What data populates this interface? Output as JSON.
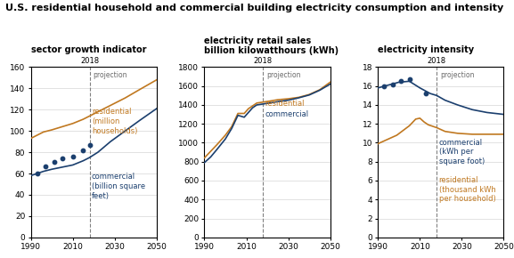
{
  "title": "U.S. residential household and commercial building electricity consumption and intensity",
  "chart_data": [
    {
      "type": "line",
      "title": "sector growth indicator",
      "xlim": [
        1990,
        2050
      ],
      "xticks": [
        1990,
        2010,
        2030,
        2050
      ],
      "ylim": [
        0,
        160
      ],
      "yticks": [
        0,
        20,
        40,
        60,
        80,
        100,
        120,
        140,
        160
      ],
      "grid": "y",
      "projection_line": {
        "x": 2018,
        "label": "2018",
        "text": "projection"
      },
      "series": [
        {
          "type": "line",
          "color": "#C07820",
          "x": [
            1990,
            1993,
            1996,
            2000,
            2005,
            2010,
            2015,
            2018,
            2022,
            2028,
            2035,
            2042,
            2050
          ],
          "values": [
            93,
            96,
            99,
            101,
            104,
            107,
            111,
            114,
            118,
            124,
            131,
            139,
            148
          ]
        },
        {
          "type": "line",
          "color": "#1B3F6E",
          "x": [
            1990,
            1993,
            1996,
            2000,
            2005,
            2010,
            2015,
            2018,
            2022,
            2028,
            2035,
            2042,
            2050
          ],
          "values": [
            58,
            60,
            62,
            64,
            66,
            68,
            72,
            75,
            80,
            90,
            100,
            110,
            121
          ]
        },
        {
          "type": "scatter",
          "color": "#1B3F6E",
          "x": [
            1993,
            1997,
            2001,
            2005,
            2010,
            2015,
            2018
          ],
          "values": [
            60,
            67,
            71,
            74,
            76,
            82,
            87
          ]
        }
      ],
      "annotations": [
        {
          "text": "residential",
          "x": 2019,
          "y": 116,
          "color": "#C07820"
        },
        {
          "text": "(million",
          "x": 2019,
          "y": 107,
          "color": "#C07820"
        },
        {
          "text": "households)",
          "x": 2019,
          "y": 98,
          "color": "#C07820"
        },
        {
          "text": "commercial",
          "x": 2019,
          "y": 55,
          "color": "#1B3F6E"
        },
        {
          "text": "(billion square",
          "x": 2019,
          "y": 46,
          "color": "#1B3F6E"
        },
        {
          "text": "feet)",
          "x": 2019,
          "y": 37,
          "color": "#1B3F6E"
        }
      ]
    },
    {
      "type": "line",
      "title": "electricity retail sales\nbillion kilowatthours (kWh)",
      "xlim": [
        1990,
        2050
      ],
      "xticks": [
        1990,
        2010,
        2030,
        2050
      ],
      "ylim": [
        0,
        1800
      ],
      "yticks": [
        0,
        200,
        400,
        600,
        800,
        1000,
        1200,
        1400,
        1600,
        1800
      ],
      "grid": "y",
      "projection_line": {
        "x": 2018,
        "label": "2018",
        "text": "projection"
      },
      "series": [
        {
          "type": "line",
          "color": "#C07820",
          "x": [
            1990,
            1993,
            1996,
            2000,
            2003,
            2006,
            2009,
            2011,
            2013,
            2015,
            2018,
            2021,
            2025,
            2030,
            2035,
            2040,
            2045,
            2050
          ],
          "values": [
            840,
            910,
            980,
            1080,
            1170,
            1310,
            1310,
            1360,
            1390,
            1420,
            1430,
            1440,
            1455,
            1465,
            1480,
            1510,
            1560,
            1640
          ]
        },
        {
          "type": "line",
          "color": "#1B3F6E",
          "x": [
            1990,
            1993,
            1996,
            2000,
            2003,
            2006,
            2009,
            2011,
            2013,
            2015,
            2018,
            2021,
            2025,
            2030,
            2035,
            2040,
            2045,
            2050
          ],
          "values": [
            790,
            850,
            930,
            1040,
            1150,
            1290,
            1270,
            1320,
            1370,
            1400,
            1410,
            1420,
            1435,
            1450,
            1475,
            1505,
            1555,
            1620
          ]
        }
      ],
      "annotations": [
        {
          "text": "residential",
          "x": 2019,
          "y": 1390,
          "color": "#C07820"
        },
        {
          "text": "commercial",
          "x": 2019,
          "y": 1280,
          "color": "#1B3F6E"
        }
      ]
    },
    {
      "type": "line",
      "title": "electricity intensity",
      "xlim": [
        1990,
        2050
      ],
      "xticks": [
        1990,
        2010,
        2030,
        2050
      ],
      "ylim": [
        0,
        18
      ],
      "yticks": [
        0,
        2,
        4,
        6,
        8,
        10,
        12,
        14,
        16,
        18
      ],
      "grid": "y",
      "projection_line": {
        "x": 2018,
        "label": "2018",
        "text": "projection"
      },
      "series": [
        {
          "type": "line",
          "color": "#1B3F6E",
          "x": [
            1990,
            1995,
            2000,
            2005,
            2010,
            2015,
            2018,
            2022,
            2028,
            2035,
            2042,
            2050
          ],
          "values": [
            15.8,
            16.1,
            16.4,
            16.5,
            15.8,
            15.2,
            15.0,
            14.5,
            14.0,
            13.5,
            13.2,
            13.0
          ]
        },
        {
          "type": "line",
          "color": "#C07820",
          "x": [
            1990,
            1993,
            1996,
            1999,
            2002,
            2005,
            2008,
            2010,
            2012,
            2014,
            2018,
            2022,
            2028,
            2035,
            2042,
            2050
          ],
          "values": [
            9.9,
            10.2,
            10.5,
            10.8,
            11.3,
            11.8,
            12.5,
            12.6,
            12.2,
            11.9,
            11.6,
            11.2,
            11.0,
            10.9,
            10.9,
            10.9
          ]
        },
        {
          "type": "scatter",
          "color": "#1B3F6E",
          "x": [
            1993,
            1997,
            2001,
            2005,
            2013
          ],
          "values": [
            16.0,
            16.2,
            16.5,
            16.7,
            15.2
          ]
        }
      ],
      "annotations": [
        {
          "text": "commercial",
          "x": 2019,
          "y": 9.8,
          "color": "#1B3F6E"
        },
        {
          "text": "(kWh per",
          "x": 2019,
          "y": 8.8,
          "color": "#1B3F6E"
        },
        {
          "text": "square foot)",
          "x": 2019,
          "y": 7.8,
          "color": "#1B3F6E"
        },
        {
          "text": "residential",
          "x": 2019,
          "y": 5.8,
          "color": "#C07820"
        },
        {
          "text": "(thousand kWh",
          "x": 2019,
          "y": 4.8,
          "color": "#C07820"
        },
        {
          "text": "per household)",
          "x": 2019,
          "y": 3.8,
          "color": "#C07820"
        }
      ]
    }
  ]
}
